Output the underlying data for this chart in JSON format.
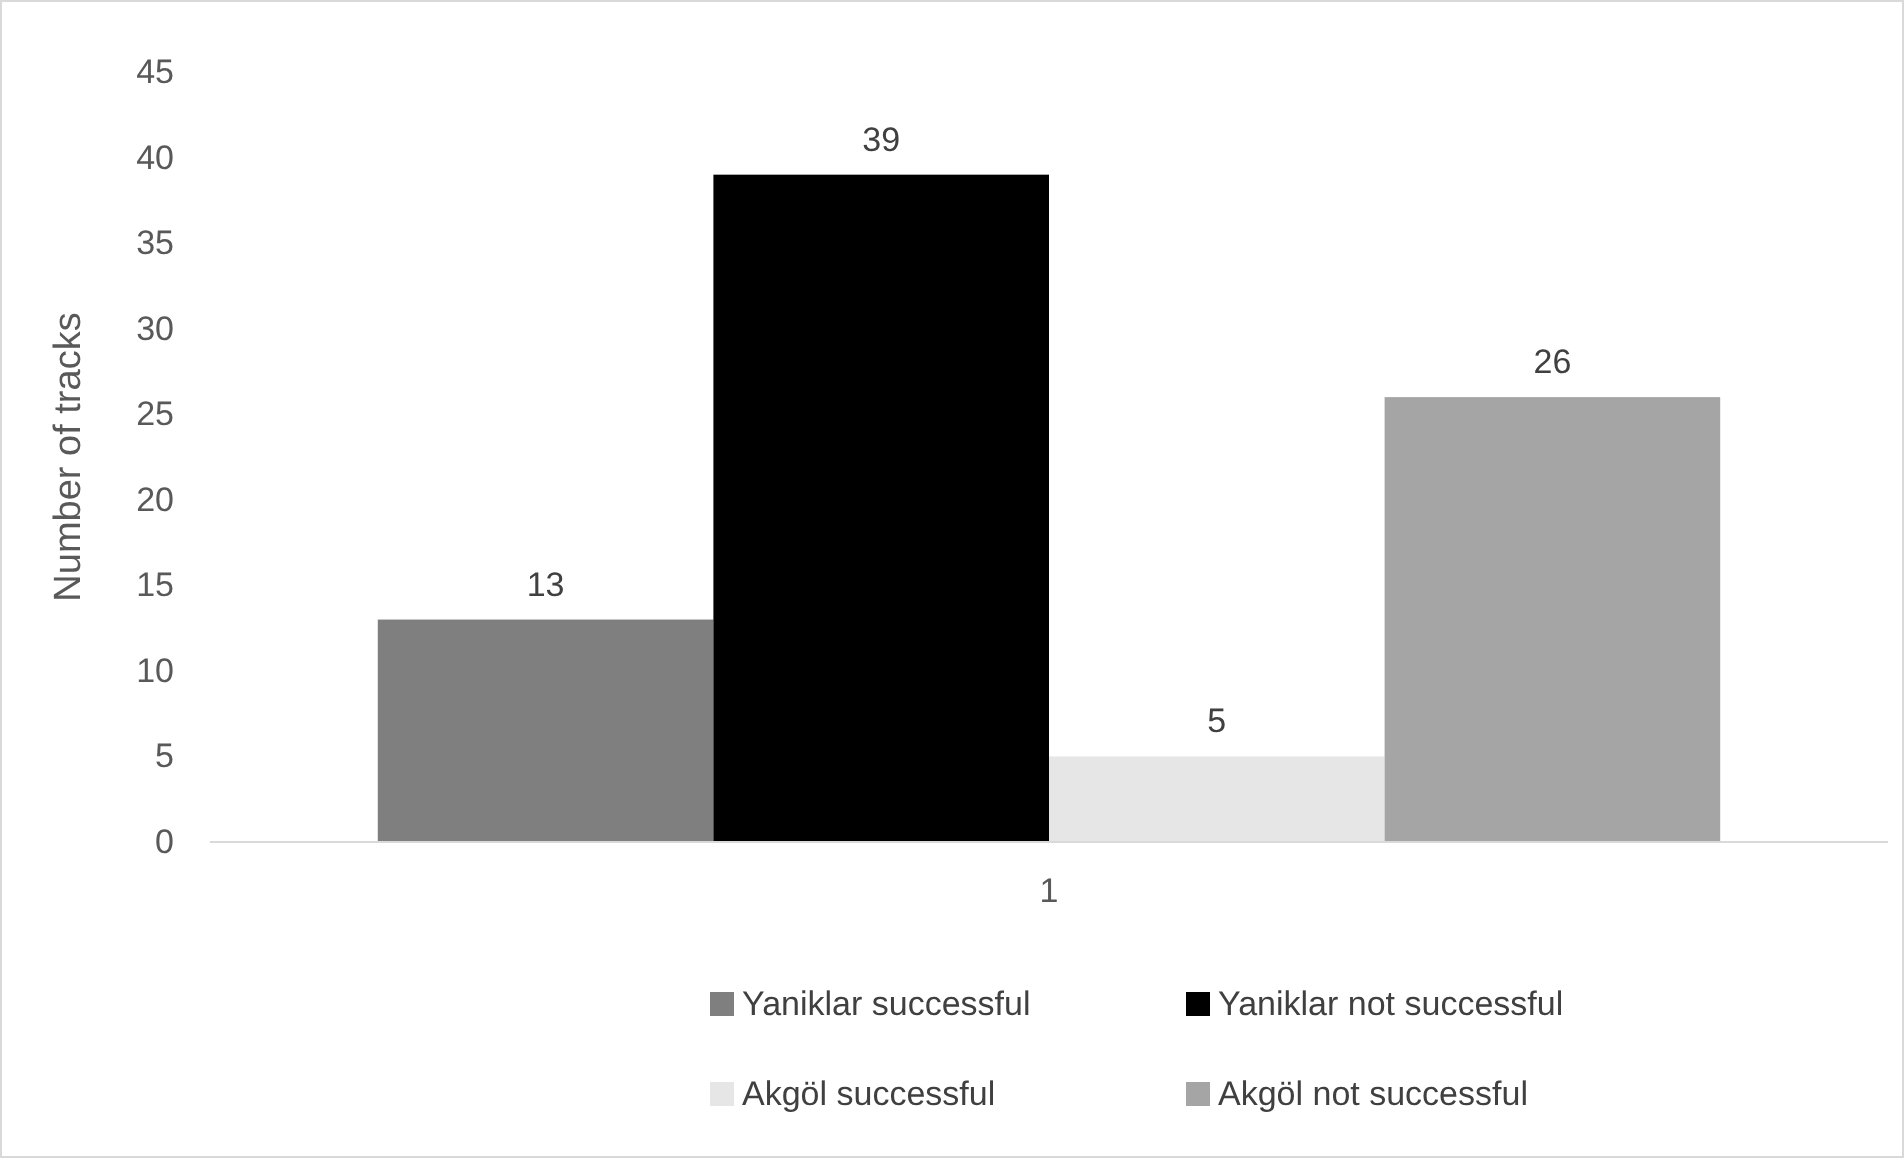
{
  "chart_data": {
    "type": "bar",
    "ylabel": "Number of tracks",
    "categories": [
      "1"
    ],
    "series": [
      {
        "name": "Yaniklar successful",
        "color": "#7f7f7f",
        "values": [
          13
        ]
      },
      {
        "name": "Yaniklar not successful",
        "color": "#000000",
        "values": [
          39
        ]
      },
      {
        "name": "Akgöl successful",
        "color": "#e6e6e6",
        "values": [
          5
        ]
      },
      {
        "name": "Akgöl not successful",
        "color": "#a5a5a5",
        "values": [
          26
        ]
      }
    ],
    "ylim": [
      0,
      45
    ],
    "yticks": [
      0,
      5,
      10,
      15,
      20,
      25,
      30,
      35,
      40,
      45
    ],
    "data_labels": true,
    "legend": "bottom"
  }
}
